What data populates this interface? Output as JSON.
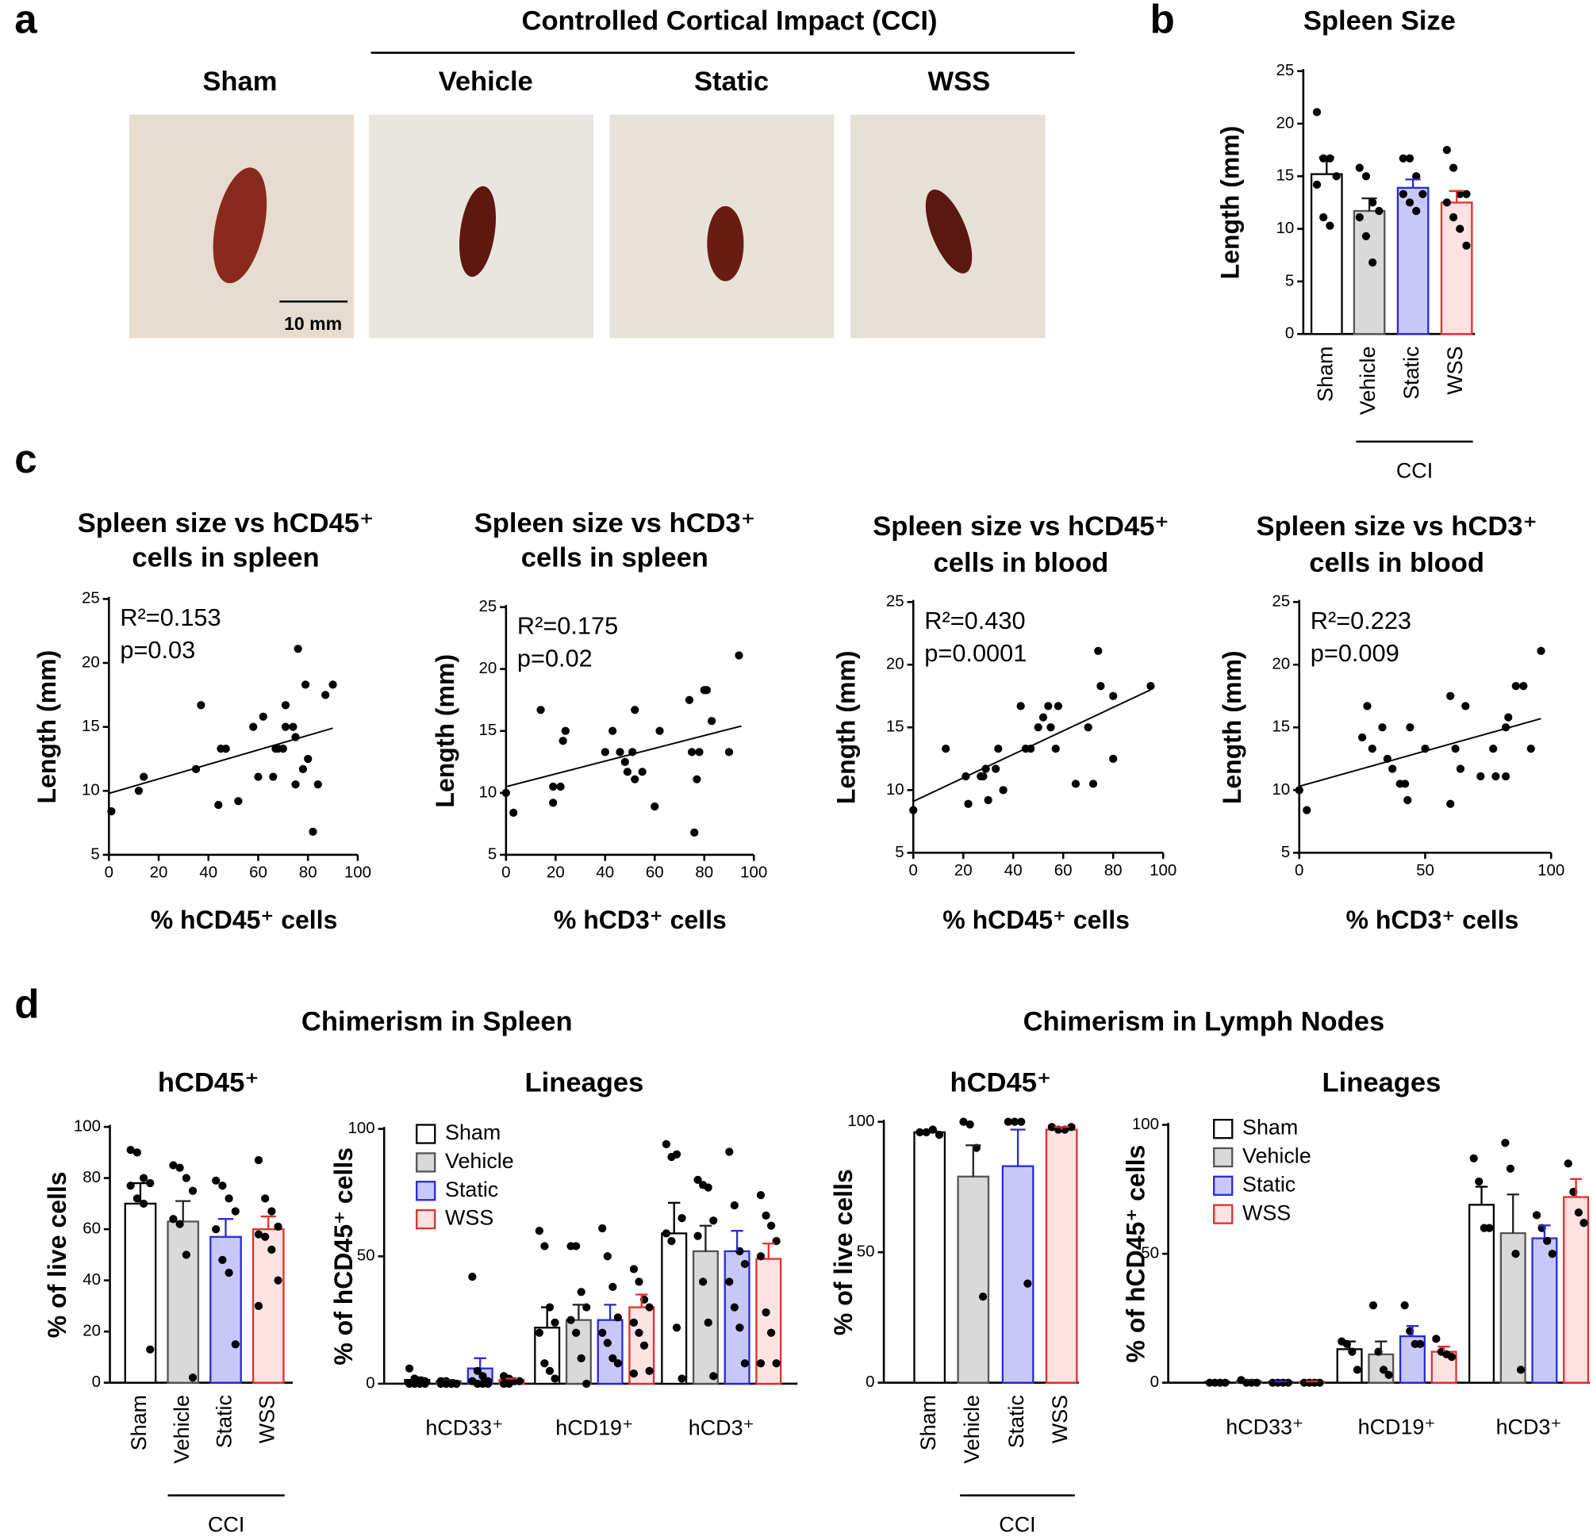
{
  "panel_labels": [
    "a",
    "b",
    "c",
    "d"
  ],
  "panel_a": {
    "group_title": "Controlled Cortical Impact (CCI)",
    "photos": [
      "Sham",
      "Vehicle",
      "Static",
      "WSS"
    ],
    "scale_bar": "10 mm"
  },
  "section_titles": [
    "Chimerism in Spleen",
    "Chimerism in Lymph Nodes"
  ],
  "chart_data": [
    {
      "type": "bar",
      "title": "Spleen Size",
      "ylabel": "Length (mm)",
      "group_label": "CCI",
      "categories": [
        "Sham",
        "Vehicle",
        "Static",
        "WSS"
      ],
      "values": [
        15.2,
        11.7,
        13.9,
        12.5
      ],
      "errors": [
        1.6,
        1.2,
        0.8,
        1.1
      ],
      "points": [
        [
          21.1,
          16.7,
          16.7,
          15.0,
          14.2,
          11.1,
          10.3
        ],
        [
          15.8,
          15.0,
          12.5,
          11.7,
          11.1,
          9.3,
          6.8
        ],
        [
          16.7,
          16.7,
          15.0,
          13.3,
          13.3,
          12.5,
          11.7
        ],
        [
          17.5,
          15.8,
          13.3,
          13.3,
          12.5,
          11.1,
          10.0,
          8.4
        ]
      ],
      "colors": [
        "#ffffff",
        "#d9d9d9",
        "#c8c8f8",
        "#fde2e2"
      ],
      "edgecolors": [
        "#000000",
        "#555555",
        "#2b2bd0",
        "#e03030"
      ],
      "ylim": [
        0,
        25
      ],
      "yticks": [
        0,
        5,
        10,
        15,
        20,
        25
      ]
    },
    {
      "type": "scatter",
      "title": [
        "Spleen size vs hCD45⁺",
        "cells in spleen"
      ],
      "xlabel": "% hCD45⁺ cells",
      "ylabel": "Length (mm)",
      "annotations": [
        "R²=0.153",
        "p=0.03"
      ],
      "x": [
        1,
        12,
        14,
        35,
        37,
        44,
        45,
        47,
        52,
        58,
        60,
        62,
        66,
        67,
        68,
        70,
        71,
        71,
        74,
        75,
        75,
        76,
        78,
        79,
        80,
        82,
        84,
        87,
        90
      ],
      "y": [
        8.4,
        10,
        11.1,
        11.7,
        16.7,
        8.9,
        13.3,
        13.3,
        9.2,
        15,
        11.1,
        15.8,
        11.1,
        13.3,
        13.3,
        13.3,
        15,
        16.7,
        15,
        14.2,
        10.5,
        21.1,
        11.7,
        18.3,
        12.5,
        6.8,
        10.5,
        17.5,
        18.3
      ],
      "fit": {
        "x": [
          0,
          90
        ],
        "y": [
          9.8,
          14.9
        ]
      },
      "color": "#000000",
      "xlim": [
        0,
        100
      ],
      "xticks": [
        0,
        20,
        40,
        60,
        80,
        100
      ],
      "ylim": [
        5,
        25
      ],
      "yticks": [
        5,
        10,
        15,
        20,
        25
      ]
    },
    {
      "type": "scatter",
      "title": [
        "Spleen size vs hCD3⁺",
        "cells in spleen"
      ],
      "xlabel": "% hCD3⁺ cells",
      "ylabel": "Length (mm)",
      "annotations": [
        "R²=0.175",
        "p=0.02"
      ],
      "x": [
        0,
        3,
        14,
        19,
        19,
        22,
        23,
        24,
        40,
        43,
        46,
        48,
        49,
        51,
        52,
        52,
        55,
        60,
        62,
        74,
        75,
        76,
        77,
        78,
        80,
        81,
        83,
        90,
        94
      ],
      "y": [
        10,
        8.4,
        16.7,
        9.2,
        10.5,
        10.5,
        14.2,
        15,
        13.3,
        15,
        13.3,
        12.5,
        11.7,
        13.3,
        16.7,
        11.1,
        11.7,
        8.9,
        15,
        17.5,
        13.3,
        6.8,
        11.1,
        13.3,
        18.3,
        18.3,
        15.8,
        13.3,
        21.1
      ],
      "fit": {
        "x": [
          0,
          95
        ],
        "y": [
          10.5,
          15.4
        ]
      },
      "color": "#000000",
      "xlim": [
        0,
        100
      ],
      "xticks": [
        0,
        20,
        40,
        60,
        80,
        100
      ],
      "ylim": [
        5,
        25
      ],
      "yticks": [
        5,
        10,
        15,
        20,
        25
      ]
    },
    {
      "type": "scatter",
      "title": [
        "Spleen size vs hCD45⁺",
        "cells in blood"
      ],
      "xlabel": "% hCD45⁺ cells",
      "ylabel": "Length (mm)",
      "annotations": [
        "R²=0.430",
        "p=0.0001"
      ],
      "x": [
        0,
        13,
        21,
        22,
        27,
        28,
        29,
        30,
        33,
        36,
        34,
        43,
        45,
        47,
        50,
        52,
        54,
        55,
        57,
        58,
        65,
        70,
        72,
        74,
        75,
        80,
        80,
        95
      ],
      "y": [
        8.4,
        13.3,
        11.1,
        8.9,
        11.1,
        11.1,
        11.7,
        9.2,
        11.7,
        10,
        13.3,
        16.7,
        13.3,
        13.3,
        15,
        15.8,
        16.7,
        15,
        13.3,
        16.7,
        10.5,
        15,
        10.5,
        21.1,
        18.3,
        17.5,
        12.5,
        18.3
      ],
      "fit": {
        "x": [
          0,
          95
        ],
        "y": [
          9.1,
          18
        ]
      },
      "color": "#000000",
      "xlim": [
        0,
        100
      ],
      "xticks": [
        0,
        20,
        40,
        60,
        80,
        100
      ],
      "ylim": [
        5,
        25
      ],
      "yticks": [
        5,
        10,
        15,
        20,
        25
      ]
    },
    {
      "type": "scatter",
      "title": [
        "Spleen size vs hCD3⁺",
        "cells in blood"
      ],
      "xlabel": "% hCD3⁺ cells",
      "ylabel": "Length (mm)",
      "annotations": [
        "R²=0.223",
        "p=0.009"
      ],
      "x": [
        0,
        3,
        25,
        27,
        29,
        33,
        35,
        37,
        40,
        42,
        43,
        44,
        50,
        60,
        60,
        62,
        64,
        66,
        72,
        77,
        78,
        82,
        82,
        83,
        86,
        89,
        92,
        96
      ],
      "y": [
        10,
        8.4,
        14.2,
        16.7,
        13.3,
        15,
        12.5,
        11.7,
        10.5,
        10.5,
        9.2,
        15,
        13.3,
        8.9,
        17.5,
        13.3,
        11.7,
        16.7,
        11.1,
        13.3,
        11.1,
        11.1,
        15,
        15.8,
        18.3,
        18.3,
        13.3,
        21.1
      ],
      "fit": {
        "x": [
          0,
          96
        ],
        "y": [
          10.3,
          15.7
        ]
      },
      "color": "#000000",
      "xlim": [
        0,
        100
      ],
      "xticks": [
        0,
        50,
        100
      ],
      "ylim": [
        5,
        25
      ],
      "yticks": [
        5,
        10,
        15,
        20,
        25
      ]
    },
    {
      "type": "bar",
      "title": "hCD45⁺",
      "ylabel": "% of live cells",
      "group_label": "CCI",
      "categories": [
        "Sham",
        "Vehicle",
        "Static",
        "WSS"
      ],
      "values": [
        70,
        63,
        57,
        60
      ],
      "errors": [
        8,
        8,
        7,
        5
      ],
      "points": [
        [
          91,
          90,
          80,
          78,
          77,
          72,
          70,
          13
        ],
        [
          85,
          84,
          80,
          75,
          64,
          62,
          50,
          2
        ],
        [
          79,
          77,
          72,
          67,
          60,
          48,
          43,
          15
        ],
        [
          87,
          72,
          67,
          61,
          58,
          57,
          52,
          40,
          30
        ]
      ],
      "colors": [
        "#ffffff",
        "#d9d9d9",
        "#c8c8f8",
        "#fde2e2"
      ],
      "edgecolors": [
        "#000000",
        "#555555",
        "#2b2bd0",
        "#e03030"
      ],
      "ylim": [
        0,
        100
      ],
      "yticks": [
        0,
        20,
        40,
        60,
        80,
        100
      ]
    },
    {
      "type": "grouped_bar",
      "title": "Lineages",
      "ylabel": "% of hCD45⁺ cells",
      "legend": "upper left",
      "categories": [
        "hCD33⁺",
        "hCD19⁺",
        "hCD3⁺"
      ],
      "series": [
        {
          "name": "Sham",
          "color": "#ffffff",
          "edgecolor": "#000000",
          "values": [
            1.5,
            22,
            59
          ],
          "errors": [
            1,
            8,
            12
          ],
          "points": [
            [
              6,
              2,
              1,
              1,
              0,
              0,
              0,
              0
            ],
            [
              60,
              54,
              30,
              24,
              20,
              8,
              5,
              2
            ],
            [
              94,
              89,
              90,
              65,
              59,
              56,
              22,
              2
            ]
          ]
        },
        {
          "name": "Vehicle",
          "color": "#d9d9d9",
          "edgecolor": "#555555",
          "values": [
            1,
            25,
            52
          ],
          "errors": [
            0.5,
            6,
            10
          ],
          "points": [
            [
              1,
              1,
              0,
              0,
              0,
              0,
              0,
              0
            ],
            [
              54,
              54,
              36,
              30,
              25,
              20,
              10,
              0
            ],
            [
              80,
              78,
              77,
              64,
              58,
              40,
              24,
              3
            ]
          ]
        },
        {
          "name": "Static",
          "color": "#c8c8f8",
          "edgecolor": "#2b2bd0",
          "values": [
            6,
            25,
            52
          ],
          "errors": [
            4,
            6,
            8
          ],
          "points": [
            [
              42,
              5,
              3,
              1,
              1,
              0,
              0,
              0
            ],
            [
              61,
              50,
              38,
              26,
              20,
              16,
              10,
              8
            ],
            [
              91,
              70,
              52,
              47,
              40,
              30,
              22,
              8
            ]
          ]
        },
        {
          "name": "WSS",
          "color": "#fde2e2",
          "edgecolor": "#e03030",
          "values": [
            1.5,
            30,
            49
          ],
          "errors": [
            0.5,
            5,
            6
          ],
          "points": [
            [
              3,
              2,
              1,
              1,
              0,
              0
            ],
            [
              45,
              40,
              33,
              30,
              24,
              20,
              15,
              5,
              4
            ],
            [
              74,
              66,
              62,
              56,
              50,
              28,
              20,
              8,
              8
            ]
          ]
        }
      ],
      "ylim": [
        0,
        100
      ],
      "yticks": [
        0,
        50,
        100
      ]
    },
    {
      "type": "bar",
      "title": "hCD45⁺",
      "ylabel": "% of live cells",
      "group_label": "CCI",
      "categories": [
        "Sham",
        "Vehicle",
        "Static",
        "WSS"
      ],
      "values": [
        96,
        79,
        83,
        97
      ],
      "errors": [
        0.5,
        12,
        14,
        1
      ],
      "points": [
        [
          96,
          96,
          97,
          95
        ],
        [
          100,
          99,
          90,
          33
        ],
        [
          100,
          100,
          100,
          38
        ],
        [
          98,
          97,
          97,
          98
        ]
      ],
      "colors": [
        "#ffffff",
        "#d9d9d9",
        "#c8c8f8",
        "#fde2e2"
      ],
      "edgecolors": [
        "#000000",
        "#555555",
        "#2b2bd0",
        "#e03030"
      ],
      "ylim": [
        0,
        100
      ],
      "yticks": [
        0,
        50,
        100
      ]
    },
    {
      "type": "grouped_bar",
      "title": "Lineages",
      "ylabel": "% of hCD45⁺ cells",
      "legend": "upper left",
      "categories": [
        "hCD33⁺",
        "hCD19⁺",
        "hCD3⁺"
      ],
      "series": [
        {
          "name": "Sham",
          "color": "#ffffff",
          "edgecolor": "#000000",
          "values": [
            0.3,
            13,
            69
          ],
          "errors": [
            0.2,
            3,
            7
          ],
          "points": [
            [
              0,
              0,
              0,
              0
            ],
            [
              16,
              15,
              12,
              5
            ],
            [
              87,
              78,
              60,
              60
            ]
          ]
        },
        {
          "name": "Vehicle",
          "color": "#d9d9d9",
          "edgecolor": "#555555",
          "values": [
            0.6,
            11,
            58
          ],
          "errors": [
            0.5,
            5,
            15
          ],
          "points": [
            [
              1,
              0,
              0,
              0
            ],
            [
              30,
              12,
              5,
              3
            ],
            [
              93,
              83,
              50,
              5
            ]
          ]
        },
        {
          "name": "Static",
          "color": "#c8c8f8",
          "edgecolor": "#2b2bd0",
          "values": [
            0.3,
            18,
            56
          ],
          "errors": [
            0.2,
            4,
            5
          ],
          "points": [
            [
              0,
              0,
              0,
              0
            ],
            [
              30,
              20,
              15,
              15
            ],
            [
              65,
              60,
              55,
              50
            ]
          ]
        },
        {
          "name": "WSS",
          "color": "#fde2e2",
          "edgecolor": "#e03030",
          "values": [
            0.3,
            12,
            72
          ],
          "errors": [
            0.2,
            2,
            7
          ],
          "points": [
            [
              0,
              0,
              0,
              0
            ],
            [
              17,
              12,
              11,
              10
            ],
            [
              85,
              74,
              66,
              62
            ]
          ]
        }
      ],
      "ylim": [
        0,
        100
      ],
      "yticks": [
        0,
        50,
        100
      ]
    }
  ]
}
